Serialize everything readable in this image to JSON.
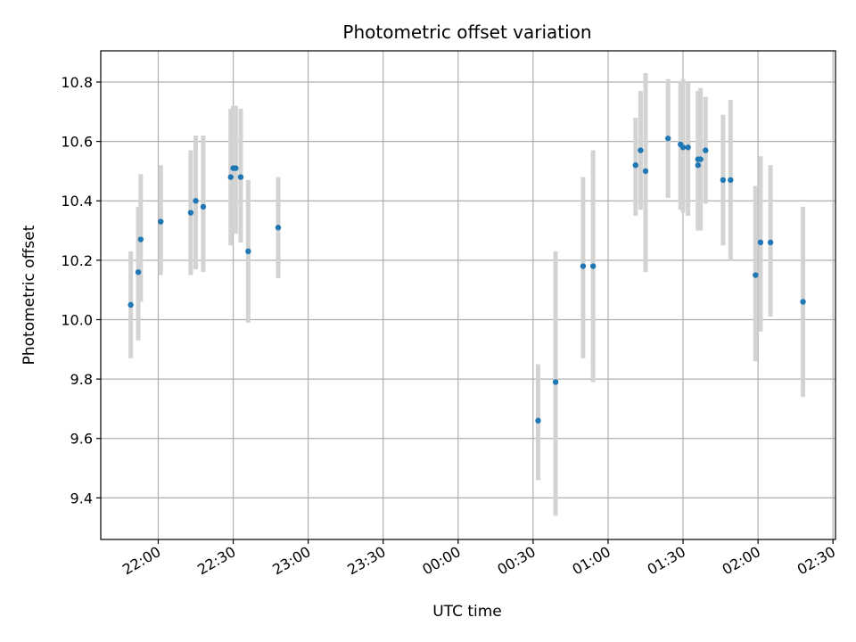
{
  "chart_data": {
    "type": "scatter",
    "title": "Photometric offset variation",
    "xlabel": "UTC time",
    "ylabel": "Photometric offset",
    "x_unit": "UTC time (HH:MM)",
    "xlim": [
      "21:37",
      "02:31"
    ],
    "ylim": [
      9.26,
      10.905
    ],
    "grid": true,
    "x_ticks": [
      "22:00",
      "22:30",
      "23:00",
      "23:30",
      "00:00",
      "00:30",
      "01:00",
      "01:30",
      "02:00",
      "02:30"
    ],
    "y_ticks": [
      "9.4",
      "9.6",
      "9.8",
      "10.0",
      "10.2",
      "10.4",
      "10.6",
      "10.8"
    ],
    "marker_color": "#1f77b4",
    "errorbar_color": "#d3d3d3",
    "points": [
      {
        "x": "21:49",
        "y": 10.05,
        "ylow": 9.87,
        "yhigh": 10.23
      },
      {
        "x": "21:52",
        "y": 10.16,
        "ylow": 9.93,
        "yhigh": 10.38
      },
      {
        "x": "21:53",
        "y": 10.27,
        "ylow": 10.06,
        "yhigh": 10.49
      },
      {
        "x": "22:01",
        "y": 10.33,
        "ylow": 10.15,
        "yhigh": 10.52
      },
      {
        "x": "22:13",
        "y": 10.36,
        "ylow": 10.15,
        "yhigh": 10.57
      },
      {
        "x": "22:15",
        "y": 10.4,
        "ylow": 10.17,
        "yhigh": 10.62
      },
      {
        "x": "22:18",
        "y": 10.38,
        "ylow": 10.16,
        "yhigh": 10.62
      },
      {
        "x": "22:29",
        "y": 10.48,
        "ylow": 10.25,
        "yhigh": 10.71
      },
      {
        "x": "22:30",
        "y": 10.51,
        "ylow": 10.29,
        "yhigh": 10.72
      },
      {
        "x": "22:31",
        "y": 10.51,
        "ylow": 10.29,
        "yhigh": 10.72
      },
      {
        "x": "22:33",
        "y": 10.48,
        "ylow": 10.26,
        "yhigh": 10.71
      },
      {
        "x": "22:36",
        "y": 10.23,
        "ylow": 9.99,
        "yhigh": 10.47
      },
      {
        "x": "22:48",
        "y": 10.31,
        "ylow": 10.14,
        "yhigh": 10.48
      },
      {
        "x": "00:32",
        "y": 9.66,
        "ylow": 9.46,
        "yhigh": 9.85
      },
      {
        "x": "00:39",
        "y": 9.79,
        "ylow": 9.34,
        "yhigh": 10.23
      },
      {
        "x": "00:50",
        "y": 10.18,
        "ylow": 9.87,
        "yhigh": 10.48
      },
      {
        "x": "00:54",
        "y": 10.18,
        "ylow": 9.79,
        "yhigh": 10.57
      },
      {
        "x": "01:11",
        "y": 10.52,
        "ylow": 10.35,
        "yhigh": 10.68
      },
      {
        "x": "01:13",
        "y": 10.57,
        "ylow": 10.37,
        "yhigh": 10.77
      },
      {
        "x": "01:15",
        "y": 10.5,
        "ylow": 10.16,
        "yhigh": 10.83
      },
      {
        "x": "01:24",
        "y": 10.61,
        "ylow": 10.41,
        "yhigh": 10.81
      },
      {
        "x": "01:29",
        "y": 10.59,
        "ylow": 10.37,
        "yhigh": 10.8
      },
      {
        "x": "01:30",
        "y": 10.58,
        "ylow": 10.36,
        "yhigh": 10.81
      },
      {
        "x": "01:32",
        "y": 10.58,
        "ylow": 10.35,
        "yhigh": 10.8
      },
      {
        "x": "01:36",
        "y": 10.54,
        "ylow": 10.31,
        "yhigh": 10.77
      },
      {
        "x": "01:36",
        "y": 10.52,
        "ylow": 10.3,
        "yhigh": 10.77
      },
      {
        "x": "01:37",
        "y": 10.54,
        "ylow": 10.3,
        "yhigh": 10.78
      },
      {
        "x": "01:39",
        "y": 10.57,
        "ylow": 10.39,
        "yhigh": 10.75
      },
      {
        "x": "01:46",
        "y": 10.47,
        "ylow": 10.25,
        "yhigh": 10.69
      },
      {
        "x": "01:49",
        "y": 10.47,
        "ylow": 10.2,
        "yhigh": 10.74
      },
      {
        "x": "01:59",
        "y": 10.15,
        "ylow": 9.86,
        "yhigh": 10.45
      },
      {
        "x": "02:01",
        "y": 10.26,
        "ylow": 9.96,
        "yhigh": 10.55
      },
      {
        "x": "02:05",
        "y": 10.26,
        "ylow": 10.01,
        "yhigh": 10.52
      },
      {
        "x": "02:18",
        "y": 10.06,
        "ylow": 9.74,
        "yhigh": 10.38
      }
    ]
  }
}
